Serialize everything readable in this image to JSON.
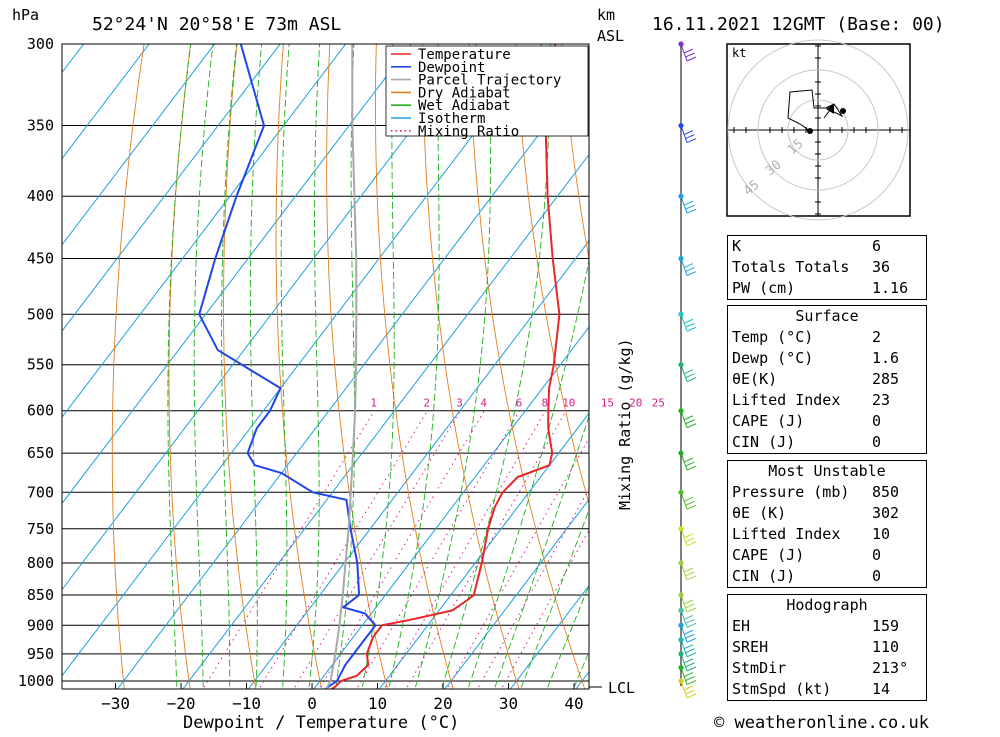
{
  "header": {
    "pressure_unit": "hPa",
    "location": "52°24'N  20°58'E  73m  ASL",
    "km_label": "km",
    "asl_label": "ASL",
    "datetime": "16.11.2021  12GMT  (Base: 00)"
  },
  "footer": {
    "credit": "© weatheronline.co.uk"
  },
  "chart_data": {
    "type": "line",
    "subtype": "skew-T log-P diagram",
    "title": "52°24'N  20°58'E  73m  ASL",
    "xlabel": "Dewpoint / Temperature (°C)",
    "ylabel": "hPa",
    "secondary_ylabel": "Mixing Ratio (g/kg)",
    "pressure_ticks": [
      300,
      350,
      400,
      450,
      500,
      550,
      600,
      650,
      700,
      750,
      800,
      850,
      900,
      950,
      1000
    ],
    "temperature_ticks": [
      -30,
      -20,
      -10,
      0,
      10,
      20,
      30,
      40
    ],
    "temperature_tick_labels": [
      "−30",
      "−20",
      "−10",
      "0",
      "10",
      "20",
      "30",
      "40"
    ],
    "xlim": [
      -40,
      40
    ],
    "ylim": [
      1020,
      300
    ],
    "mixing_ratio_labels": [
      "1",
      "2",
      "3",
      "4",
      "6",
      "8",
      "10",
      "15",
      "20",
      "25"
    ],
    "lcl_label": "LCL",
    "legend": {
      "placement": "top-right",
      "entries": [
        {
          "name": "Temperature",
          "color": "#e8262a",
          "style": "solid"
        },
        {
          "name": "Dewpoint",
          "color": "#2046e8",
          "style": "solid"
        },
        {
          "name": "Parcel Trajectory",
          "color": "#a8a8a8",
          "style": "solid"
        },
        {
          "name": "Dry Adiabat",
          "color": "#e08020",
          "style": "solid"
        },
        {
          "name": "Wet Adiabat",
          "color": "#20b020",
          "style": "solid"
        },
        {
          "name": "Isotherm",
          "color": "#1ea0e0",
          "style": "solid"
        },
        {
          "name": "Mixing Ratio",
          "color": "#d0208a",
          "style": "dotted"
        }
      ]
    },
    "series": [
      {
        "name": "Temperature",
        "color": "#e8262a",
        "points": [
          [
            1020,
            2.5
          ],
          [
            1010,
            3
          ],
          [
            1000,
            3.2
          ],
          [
            990,
            5
          ],
          [
            970,
            5.5
          ],
          [
            950,
            4
          ],
          [
            920,
            3
          ],
          [
            900,
            3
          ],
          [
            890,
            7
          ],
          [
            875,
            12
          ],
          [
            860,
            13
          ],
          [
            850,
            13.5
          ],
          [
            800,
            11
          ],
          [
            750,
            8
          ],
          [
            720,
            6.5
          ],
          [
            700,
            6
          ],
          [
            680,
            6.5
          ],
          [
            665,
            10
          ],
          [
            650,
            9
          ],
          [
            620,
            5.5
          ],
          [
            600,
            3.5
          ],
          [
            575,
            1
          ],
          [
            550,
            -1
          ],
          [
            500,
            -6
          ],
          [
            450,
            -13.5
          ],
          [
            400,
            -21.5
          ],
          [
            350,
            -30
          ],
          [
            300,
            -38
          ]
        ]
      },
      {
        "name": "Dewpoint",
        "color": "#2046e8",
        "points": [
          [
            1020,
            1.5
          ],
          [
            1010,
            2
          ],
          [
            1000,
            2.6
          ],
          [
            970,
            2
          ],
          [
            950,
            2
          ],
          [
            920,
            2
          ],
          [
            900,
            2
          ],
          [
            880,
            -1
          ],
          [
            870,
            -5
          ],
          [
            850,
            -4
          ],
          [
            800,
            -8
          ],
          [
            750,
            -13
          ],
          [
            710,
            -17
          ],
          [
            700,
            -23
          ],
          [
            675,
            -30
          ],
          [
            665,
            -35
          ],
          [
            650,
            -37.5
          ],
          [
            620,
            -39
          ],
          [
            600,
            -39
          ],
          [
            575,
            -40
          ],
          [
            535,
            -54
          ],
          [
            500,
            -61
          ],
          [
            450,
            -65
          ],
          [
            400,
            -69
          ],
          [
            350,
            -73
          ],
          [
            300,
            -86
          ]
        ]
      },
      {
        "name": "Parcel Trajectory",
        "color": "#a8a8a8",
        "points": [
          [
            1020,
            2
          ],
          [
            1000,
            1.6
          ],
          [
            950,
            -0.8
          ],
          [
            900,
            -3.5
          ],
          [
            850,
            -6.5
          ],
          [
            800,
            -9.8
          ],
          [
            750,
            -13.3
          ],
          [
            700,
            -17.2
          ],
          [
            650,
            -21.4
          ],
          [
            600,
            -26
          ],
          [
            550,
            -31.2
          ],
          [
            500,
            -37
          ],
          [
            450,
            -43.5
          ],
          [
            400,
            -51
          ],
          [
            350,
            -59.5
          ],
          [
            300,
            -69
          ]
        ]
      }
    ],
    "wind_barbs": {
      "unit": "kt",
      "levels_hpa": [
        1000,
        975,
        950,
        925,
        900,
        875,
        850,
        800,
        750,
        700,
        650,
        600,
        550,
        500,
        450,
        400,
        350,
        300
      ]
    },
    "hodograph": {
      "unit_label": "kt",
      "ring_labels": [
        "15",
        "30",
        "45"
      ]
    }
  },
  "indices": {
    "top": [
      {
        "label": "K",
        "value": "6"
      },
      {
        "label": "Totals Totals",
        "value": "36"
      },
      {
        "label": "PW (cm)",
        "value": "1.16"
      }
    ],
    "surface": {
      "title": "Surface",
      "rows": [
        {
          "label": "Temp (°C)",
          "value": "2"
        },
        {
          "label": "Dewp (°C)",
          "value": "1.6"
        },
        {
          "label": "θE(K)",
          "value": "285"
        },
        {
          "label": "Lifted Index",
          "value": "23"
        },
        {
          "label": "CAPE (J)",
          "value": "0"
        },
        {
          "label": "CIN (J)",
          "value": "0"
        }
      ]
    },
    "most_unstable": {
      "title": "Most Unstable",
      "rows": [
        {
          "label": "Pressure (mb)",
          "value": "850"
        },
        {
          "label": "θE (K)",
          "value": "302"
        },
        {
          "label": "Lifted Index",
          "value": "10"
        },
        {
          "label": "CAPE (J)",
          "value": "0"
        },
        {
          "label": "CIN (J)",
          "value": "0"
        }
      ]
    },
    "hodograph": {
      "title": "Hodograph",
      "rows": [
        {
          "label": "EH",
          "value": "159"
        },
        {
          "label": "SREH",
          "value": "110"
        },
        {
          "label": "StmDir",
          "value": "213°"
        },
        {
          "label": "StmSpd (kt)",
          "value": "14"
        }
      ]
    }
  }
}
